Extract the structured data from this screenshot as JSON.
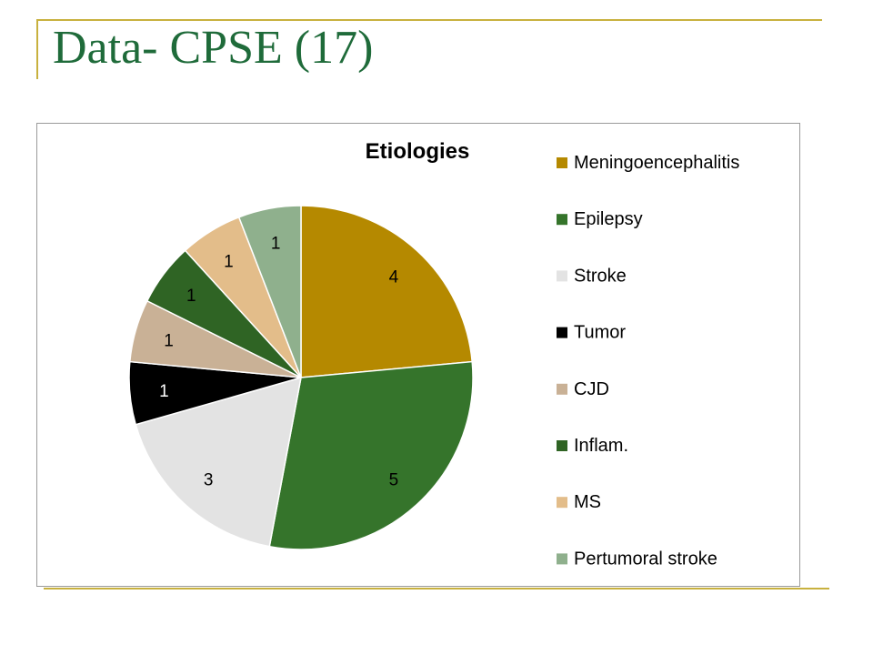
{
  "slide": {
    "title": "Data- CPSE (17)"
  },
  "chart_data": {
    "type": "pie",
    "title": "Etiologies",
    "categories": [
      "Meningoencephalitis",
      "Epilepsy",
      "Stroke",
      "Tumor",
      "CJD",
      "Inflam.",
      "MS",
      "Pertumoral stroke"
    ],
    "values": [
      4,
      5,
      3,
      1,
      1,
      1,
      1,
      1
    ],
    "colors": [
      "#b58900",
      "#35742b",
      "#e3e3e3",
      "#000000",
      "#c9b196",
      "#2f6424",
      "#e3bd8a",
      "#8fb08d"
    ],
    "label_colors": [
      "#000000",
      "#000000",
      "#000000",
      "#ffffff",
      "#000000",
      "#000000",
      "#000000",
      "#000000"
    ],
    "legend_position": "right"
  }
}
